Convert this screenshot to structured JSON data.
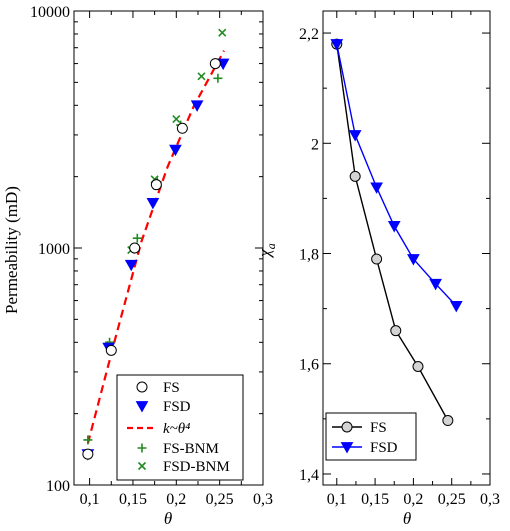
{
  "colors": {
    "fs_marker": "#000000",
    "fsd_marker": "#0000ff",
    "fit_line": "#ff0000",
    "fs_bnm": "#228b22",
    "fsd_bnm": "#228b22",
    "fs_fill": "#d3d3d3"
  },
  "chart_data": [
    {
      "type": "scatter",
      "xlabel": "θ",
      "ylabel": "Permeability (mD)",
      "xlim": [
        0.1,
        0.3
      ],
      "ylim": [
        100,
        10000
      ],
      "yscale": "log",
      "xticks": [
        "0,1",
        "0,15",
        "0,2",
        "0,25",
        "0,3"
      ],
      "yticks": [
        "100",
        "1000",
        "10000"
      ],
      "legend_position": "bottom-right",
      "series": [
        {
          "name": "FS",
          "marker": "open-circle",
          "x": [
            0.098,
            0.125,
            0.152,
            0.177,
            0.207,
            0.245
          ],
          "y": [
            135,
            370,
            1000,
            1850,
            3200,
            6000
          ]
        },
        {
          "name": "FSD",
          "marker": "down-triangle",
          "x": [
            0.098,
            0.122,
            0.148,
            0.173,
            0.199,
            0.224,
            0.254
          ],
          "y": [
            135,
            380,
            850,
            1550,
            2600,
            4000,
            6000
          ]
        },
        {
          "name": "k~θ⁴",
          "marker": "dashed-line",
          "x": [
            0.098,
            0.13,
            0.16,
            0.19,
            0.22,
            0.255
          ],
          "y": [
            150,
            420,
            1070,
            2200,
            3950,
            6800
          ]
        },
        {
          "name": "FS-BNM",
          "marker": "plus",
          "x": [
            0.098,
            0.123,
            0.155,
            0.178,
            0.205,
            0.248
          ],
          "y": [
            155,
            400,
            1100,
            1900,
            3300,
            5200
          ]
        },
        {
          "name": "FSD-BNM",
          "marker": "x",
          "x": [
            0.124,
            0.148,
            0.175,
            0.2,
            0.229,
            0.253
          ],
          "y": [
            390,
            980,
            1950,
            3500,
            5300,
            8100
          ]
        }
      ]
    },
    {
      "type": "line",
      "xlabel": "θ",
      "ylabel": "χa",
      "ylabel_main": "χ",
      "ylabel_sub": "a",
      "xlim": [
        0.1,
        0.3
      ],
      "ylim": [
        1.4,
        2.2
      ],
      "xticks": [
        "0,1",
        "0,15",
        "0,2",
        "0,25",
        "0,3"
      ],
      "yticks": [
        "1,4",
        "1,6",
        "1,8",
        "2",
        "2,2"
      ],
      "legend_position": "bottom-left",
      "series": [
        {
          "name": "FS",
          "marker": "open-circle",
          "x": [
            0.1,
            0.124,
            0.152,
            0.177,
            0.206,
            0.245
          ],
          "y": [
            2.18,
            1.94,
            1.79,
            1.66,
            1.595,
            1.497
          ]
        },
        {
          "name": "FSD",
          "marker": "down-triangle",
          "x": [
            0.1,
            0.124,
            0.152,
            0.175,
            0.2,
            0.229,
            0.256
          ],
          "y": [
            2.18,
            2.015,
            1.92,
            1.85,
            1.79,
            1.745,
            1.705
          ]
        }
      ]
    }
  ]
}
